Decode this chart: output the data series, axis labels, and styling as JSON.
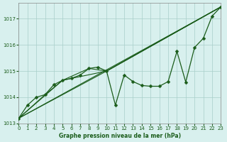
{
  "xlabel": "Graphe pression niveau de la mer (hPa)",
  "xlim": [
    0,
    23
  ],
  "ylim": [
    1013.0,
    1017.6
  ],
  "yticks": [
    1013,
    1014,
    1015,
    1016,
    1017
  ],
  "xticks": [
    0,
    1,
    2,
    3,
    4,
    5,
    6,
    7,
    8,
    9,
    10,
    11,
    12,
    13,
    14,
    15,
    16,
    17,
    18,
    19,
    20,
    21,
    22,
    23
  ],
  "bg_color": "#d8f0ee",
  "grid_color": "#a8ceca",
  "line_color": "#1a5c1a",
  "series1_x": [
    0,
    1,
    2,
    3,
    4,
    5,
    6,
    7,
    8,
    9,
    10,
    11,
    12,
    13,
    14,
    15,
    16,
    17,
    18,
    19,
    20,
    21,
    22,
    23
  ],
  "series1_y": [
    1013.2,
    1013.7,
    1014.0,
    1014.1,
    1014.48,
    1014.65,
    1014.72,
    1014.85,
    1015.1,
    1015.15,
    1015.0,
    1013.7,
    1014.85,
    1014.6,
    1014.45,
    1014.42,
    1014.42,
    1014.6,
    1015.75,
    1014.58,
    1015.9,
    1016.25,
    1017.1,
    1017.45
  ],
  "series2_x": [
    0,
    23
  ],
  "series2_y": [
    1013.2,
    1017.45
  ],
  "series3_x": [
    0,
    10,
    23
  ],
  "series3_y": [
    1013.2,
    1015.0,
    1017.45
  ],
  "series4_x": [
    0,
    5,
    10,
    23
  ],
  "series4_y": [
    1013.2,
    1014.65,
    1015.0,
    1017.45
  ],
  "series5_x": [
    0,
    3,
    5,
    8,
    10,
    23
  ],
  "series5_y": [
    1013.2,
    1014.1,
    1014.65,
    1015.1,
    1015.0,
    1017.45
  ]
}
